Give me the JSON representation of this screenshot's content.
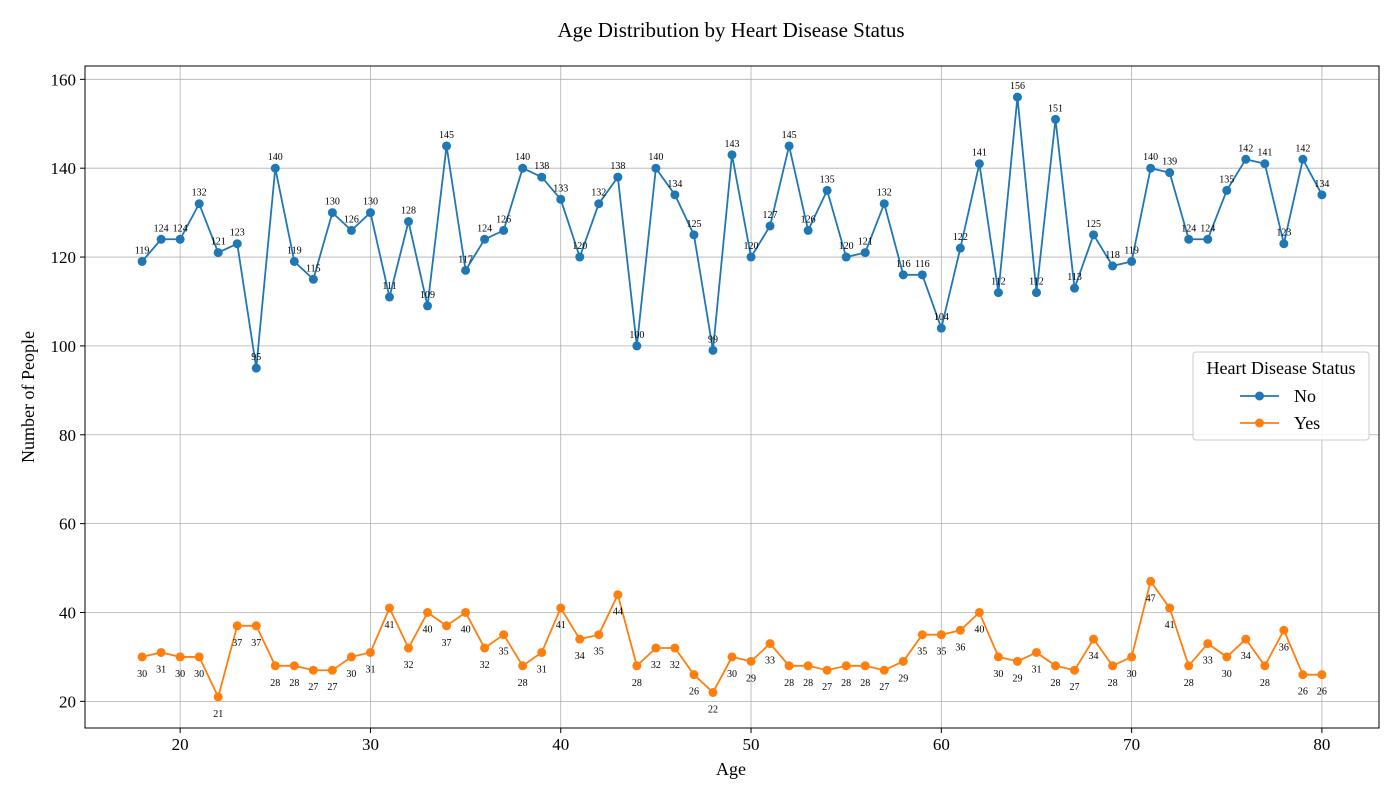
{
  "chart_data": {
    "type": "line",
    "title": "Age Distribution by Heart Disease Status",
    "xlabel": "Age",
    "ylabel": "Number of People",
    "xlim": [
      15,
      83
    ],
    "ylim": [
      14,
      163
    ],
    "xticks": [
      20,
      30,
      40,
      50,
      60,
      70,
      80
    ],
    "yticks": [
      20,
      40,
      60,
      80,
      100,
      120,
      140,
      160
    ],
    "grid": true,
    "legend": {
      "title": "Heart Disease Status",
      "placement": "center-right"
    },
    "x": [
      18,
      19,
      20,
      21,
      22,
      23,
      24,
      25,
      26,
      27,
      28,
      29,
      30,
      31,
      32,
      33,
      34,
      35,
      36,
      37,
      38,
      39,
      40,
      41,
      42,
      43,
      44,
      45,
      46,
      47,
      48,
      49,
      50,
      51,
      52,
      53,
      54,
      55,
      56,
      57,
      58,
      59,
      60,
      61,
      62,
      63,
      64,
      65,
      66,
      67,
      68,
      69,
      70,
      71,
      72,
      73,
      74,
      75,
      76,
      77,
      78,
      79,
      80
    ],
    "series": [
      {
        "name": "No",
        "color": "#1f77b4",
        "values": [
          119,
          124,
          124,
          132,
          121,
          123,
          95,
          140,
          119,
          115,
          130,
          126,
          130,
          111,
          128,
          109,
          145,
          117,
          124,
          126,
          140,
          138,
          133,
          120,
          132,
          138,
          100,
          140,
          134,
          125,
          99,
          143,
          120,
          127,
          145,
          126,
          135,
          120,
          121,
          132,
          116,
          116,
          104,
          122,
          141,
          112,
          156,
          112,
          151,
          113,
          125,
          118,
          119,
          140,
          139,
          124,
          124,
          135,
          142,
          141,
          123,
          142,
          134
        ]
      },
      {
        "name": "Yes",
        "color": "#ff7f0e",
        "values": [
          30,
          31,
          30,
          30,
          21,
          37,
          37,
          28,
          28,
          27,
          27,
          30,
          31,
          41,
          32,
          40,
          37,
          40,
          32,
          35,
          28,
          31,
          41,
          34,
          35,
          44,
          28,
          32,
          32,
          26,
          22,
          30,
          29,
          33,
          28,
          28,
          27,
          28,
          28,
          27,
          29,
          35,
          35,
          36,
          40,
          30,
          29,
          31,
          28,
          27,
          34,
          28,
          30,
          47,
          41,
          28,
          33,
          30,
          34,
          28,
          36,
          26,
          26
        ]
      }
    ]
  }
}
